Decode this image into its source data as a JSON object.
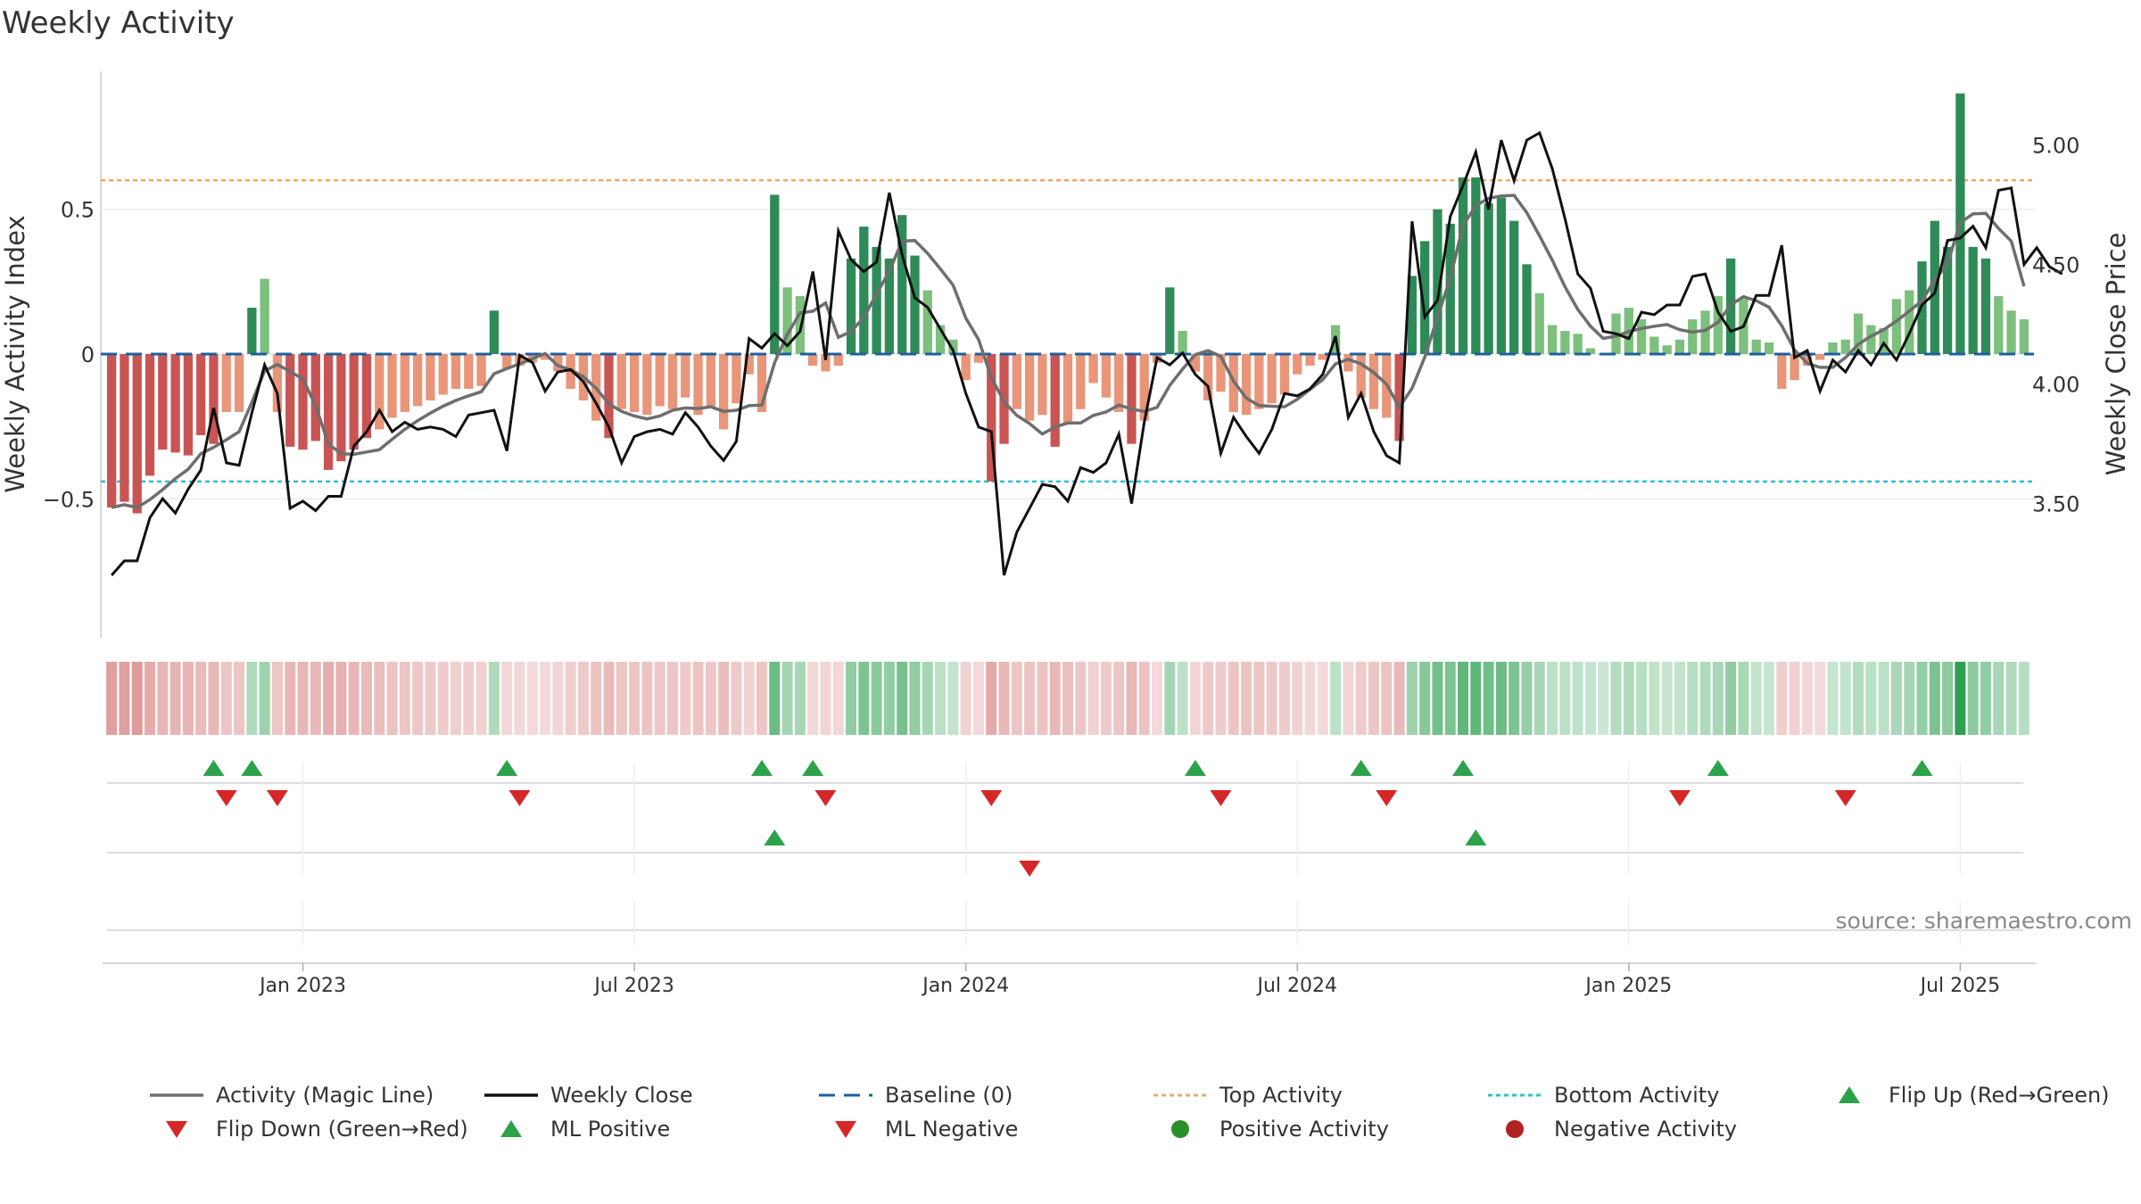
{
  "chart_data": {
    "type": "bar",
    "title": "Weekly Activity",
    "ylabel": "Weekly Activity Index",
    "ylabel_right": "Weekly Close Price",
    "source": "source: sharemaestro.com",
    "ylim": [
      -0.97,
      0.97
    ],
    "ylim_right": [
      2.95,
      5.3
    ],
    "yticks": [
      {
        "value": 0.5,
        "label": "0.5"
      },
      {
        "value": 0,
        "label": "0"
      },
      {
        "value": -0.5,
        "label": "−0.5"
      }
    ],
    "yticks_right": [
      {
        "value": 5.0,
        "label": "5.00"
      },
      {
        "value": 4.5,
        "label": "4.50"
      },
      {
        "value": 4.0,
        "label": "4.00"
      },
      {
        "value": 3.5,
        "label": "3.50"
      }
    ],
    "top_activity": 0.6,
    "bottom_activity": -0.44,
    "baseline": 0,
    "xticks": [
      {
        "week": 15,
        "label": "Jan 2023"
      },
      {
        "week": 41,
        "label": "Jul 2023"
      },
      {
        "week": 67,
        "label": "Jan 2024"
      },
      {
        "week": 93,
        "label": "Jul 2024"
      },
      {
        "week": 119,
        "label": "Jan 2025"
      },
      {
        "week": 145,
        "label": "Jul 2025"
      }
    ],
    "activity": [
      -0.53,
      -0.51,
      -0.55,
      -0.42,
      -0.33,
      -0.34,
      -0.35,
      -0.28,
      -0.31,
      -0.2,
      -0.2,
      0.16,
      0.26,
      -0.2,
      -0.32,
      -0.33,
      -0.3,
      -0.4,
      -0.37,
      -0.33,
      -0.29,
      -0.26,
      -0.22,
      -0.2,
      -0.18,
      -0.16,
      -0.14,
      -0.12,
      -0.12,
      -0.11,
      0.15,
      -0.05,
      -0.04,
      -0.03,
      -0.02,
      -0.06,
      -0.12,
      -0.16,
      -0.23,
      -0.29,
      -0.19,
      -0.2,
      -0.21,
      -0.18,
      -0.19,
      -0.15,
      -0.21,
      -0.18,
      -0.26,
      -0.17,
      -0.07,
      -0.2,
      0.55,
      0.23,
      0.2,
      -0.04,
      -0.06,
      -0.04,
      0.33,
      0.44,
      0.37,
      0.33,
      0.48,
      0.34,
      0.22,
      0.1,
      0.05,
      -0.09,
      -0.03,
      -0.44,
      -0.31,
      -0.19,
      -0.23,
      -0.21,
      -0.32,
      -0.24,
      -0.19,
      -0.1,
      -0.15,
      -0.2,
      -0.31,
      -0.23,
      -0.03,
      0.23,
      0.08,
      -0.06,
      -0.16,
      -0.13,
      -0.2,
      -0.21,
      -0.19,
      -0.17,
      -0.14,
      -0.07,
      -0.04,
      -0.02,
      0.1,
      -0.06,
      -0.15,
      -0.19,
      -0.22,
      -0.3,
      0.27,
      0.39,
      0.5,
      0.45,
      0.61,
      0.61,
      0.52,
      0.54,
      0.46,
      0.31,
      0.21,
      0.1,
      0.08,
      0.07,
      0.02,
      0.0,
      0.14,
      0.16,
      0.12,
      0.06,
      0.03,
      0.05,
      0.12,
      0.15,
      0.2,
      0.33,
      0.19,
      0.05,
      0.04,
      -0.12,
      -0.09,
      -0.04,
      -0.02,
      0.04,
      0.05,
      0.14,
      0.1,
      0.09,
      0.19,
      0.22,
      0.32,
      0.46,
      0.37,
      0.9,
      0.37,
      0.33,
      0.2,
      0.15,
      0.12
    ],
    "close": [
      3.2,
      3.26,
      3.26,
      3.44,
      3.52,
      3.46,
      3.56,
      3.64,
      3.9,
      3.67,
      3.66,
      3.88,
      4.08,
      3.96,
      3.48,
      3.51,
      3.47,
      3.53,
      3.53,
      3.74,
      3.8,
      3.89,
      3.8,
      3.84,
      3.81,
      3.82,
      3.81,
      3.78,
      3.87,
      3.88,
      3.89,
      3.72,
      4.12,
      4.09,
      3.97,
      4.05,
      4.06,
      4.01,
      3.92,
      3.82,
      3.67,
      3.78,
      3.8,
      3.81,
      3.79,
      3.88,
      3.82,
      3.74,
      3.68,
      3.76,
      4.19,
      4.15,
      4.21,
      4.16,
      4.22,
      4.47,
      4.1,
      4.64,
      4.52,
      4.47,
      4.51,
      4.8,
      4.54,
      4.36,
      4.32,
      4.23,
      4.14,
      3.96,
      3.82,
      3.8,
      3.2,
      3.38,
      3.48,
      3.58,
      3.57,
      3.51,
      3.65,
      3.63,
      3.67,
      3.79,
      3.5,
      3.84,
      4.11,
      4.08,
      4.13,
      4.04,
      3.99,
      3.71,
      3.86,
      3.78,
      3.71,
      3.81,
      3.96,
      3.95,
      3.98,
      4.04,
      4.2,
      3.86,
      3.96,
      3.8,
      3.7,
      3.67,
      4.68,
      4.28,
      4.35,
      4.7,
      4.83,
      4.97,
      4.73,
      5.02,
      4.85,
      5.02,
      5.05,
      4.9,
      4.69,
      4.46,
      4.4,
      4.22,
      4.21,
      4.19,
      4.3,
      4.29,
      4.33,
      4.33,
      4.45,
      4.46,
      4.3,
      4.22,
      4.24,
      4.37,
      4.37,
      4.58,
      4.11,
      4.14,
      3.97,
      4.1,
      4.05,
      4.14,
      4.08,
      4.17,
      4.1,
      4.21,
      4.33,
      4.38,
      4.6,
      4.61,
      4.66,
      4.57,
      4.81,
      4.82,
      4.5,
      4.57,
      4.49,
      4.46
    ],
    "flip_up": [
      8,
      11,
      31,
      51,
      55,
      85,
      98,
      106,
      126,
      142
    ],
    "flip_down": [
      9,
      13,
      32,
      56,
      69,
      87,
      100,
      123,
      136
    ],
    "ml_positive": [
      52,
      107
    ],
    "ml_negative": [
      72
    ],
    "legend": [
      {
        "key": "magic",
        "label": "Activity (Magic Line)"
      },
      {
        "key": "close",
        "label": "Weekly Close"
      },
      {
        "key": "baseline",
        "label": "Baseline (0)"
      },
      {
        "key": "top",
        "label": "Top Activity"
      },
      {
        "key": "bottom",
        "label": "Bottom Activity"
      },
      {
        "key": "flipup",
        "label": "Flip Up (Red→Green)"
      },
      {
        "key": "flipdown",
        "label": "Flip Down (Green→Red)"
      },
      {
        "key": "mlpos",
        "label": "ML Positive"
      },
      {
        "key": "mlneg",
        "label": "ML Negative"
      },
      {
        "key": "posact",
        "label": "Positive Activity"
      },
      {
        "key": "negact",
        "label": "Negative Activity"
      }
    ]
  },
  "colors": {
    "green_dark": "#2e8b57",
    "green_light": "#7dbf7d",
    "red_dark": "#c95454",
    "red_light": "#e8957a",
    "magic_line": "#6e6e6e",
    "close_line": "#111111",
    "baseline": "#1f5f9e",
    "top_activity": "#f0a860",
    "bottom_activity": "#30c0d0",
    "marker_green": "#2ca34a",
    "marker_red": "#d62728",
    "dot_green": "#2a8f2a",
    "dot_red": "#b22222"
  }
}
